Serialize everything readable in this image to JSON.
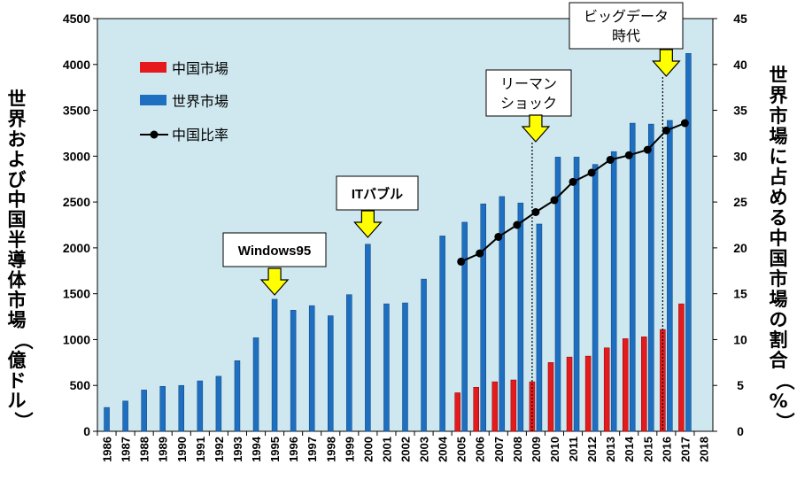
{
  "chart_data": {
    "type": "bar",
    "categories": [
      "1986",
      "1987",
      "1988",
      "1989",
      "1990",
      "1991",
      "1992",
      "1993",
      "1994",
      "1995",
      "1996",
      "1997",
      "1998",
      "1999",
      "2000",
      "2001",
      "2002",
      "2003",
      "2004",
      "2005",
      "2006",
      "2007",
      "2008",
      "2009",
      "2010",
      "2011",
      "2012",
      "2013",
      "2014",
      "2015",
      "2016",
      "2017",
      "2018"
    ],
    "series": [
      {
        "name": "中国市場",
        "type": "bar",
        "axis": "left",
        "color": "#e41a1c",
        "values": [
          null,
          null,
          null,
          null,
          null,
          null,
          null,
          null,
          null,
          null,
          null,
          null,
          null,
          null,
          null,
          null,
          null,
          null,
          null,
          420,
          480,
          540,
          560,
          540,
          750,
          810,
          820,
          910,
          1010,
          1030,
          1110,
          1390,
          null
        ]
      },
      {
        "name": "世界市場",
        "type": "bar",
        "axis": "left",
        "color": "#1f6fc0",
        "values": [
          260,
          330,
          450,
          490,
          500,
          550,
          600,
          770,
          1020,
          1440,
          1320,
          1370,
          1260,
          1490,
          2040,
          1390,
          1400,
          1660,
          2130,
          2280,
          2480,
          2560,
          2490,
          2260,
          2990,
          2990,
          2910,
          3050,
          3360,
          3350,
          3390,
          4120,
          null
        ]
      },
      {
        "name": "中国比率",
        "type": "line",
        "axis": "right",
        "color": "#000000",
        "values": [
          null,
          null,
          null,
          null,
          null,
          null,
          null,
          null,
          null,
          null,
          null,
          null,
          null,
          null,
          null,
          null,
          null,
          null,
          null,
          18.5,
          19.4,
          21.2,
          22.5,
          23.9,
          25.2,
          27.2,
          28.2,
          29.6,
          30.1,
          30.7,
          32.8,
          33.6,
          null
        ]
      }
    ],
    "y_left": {
      "label": "世界および中国半導体市場（億ドル）",
      "min": 0,
      "max": 4500,
      "step": 500,
      "ticks": [
        "0",
        "500",
        "1000",
        "1500",
        "2000",
        "2500",
        "3000",
        "3500",
        "4000",
        "4500"
      ]
    },
    "y_right": {
      "label": "世界市場に占める中国市場の割合（%）",
      "min": 0,
      "max": 45,
      "step": 5,
      "ticks": [
        "0",
        "5",
        "10",
        "15",
        "20",
        "25",
        "30",
        "35",
        "40",
        "45"
      ]
    },
    "grid": false,
    "legend": {
      "position": "top-left",
      "entries": [
        "中国市場",
        "世界市場",
        "中国比率"
      ]
    },
    "annotations": [
      {
        "year": "1995",
        "lines": [
          "Windows95"
        ],
        "bold": true,
        "dashed": false
      },
      {
        "year": "2000",
        "lines": [
          "ITバブル"
        ],
        "bold": true,
        "dashed": false
      },
      {
        "year": "2009",
        "lines": [
          "リーマン",
          "ショック"
        ],
        "bold": false,
        "dashed": true
      },
      {
        "year": "2016",
        "lines": [
          "ビッグデータ",
          "時代"
        ],
        "bold": false,
        "dashed": true
      }
    ]
  },
  "colors": {
    "plot_bg": "#cfe8f0",
    "arrow": "#ffff00"
  }
}
